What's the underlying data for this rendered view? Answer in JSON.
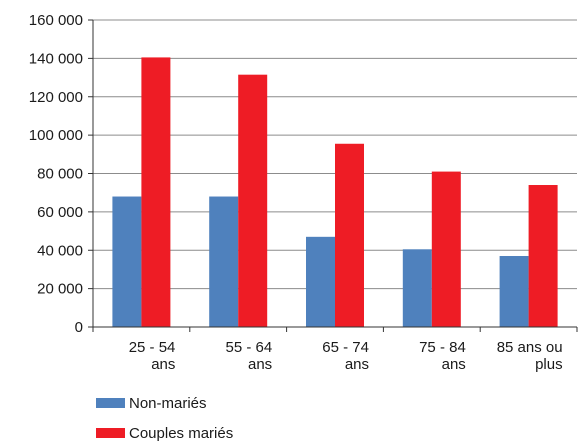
{
  "chart_data": {
    "type": "bar",
    "categories": [
      [
        "25 - 54",
        "ans"
      ],
      [
        "55 - 64",
        "ans"
      ],
      [
        "65 - 74",
        "ans"
      ],
      [
        "75 - 84",
        "ans"
      ],
      [
        "85 ans ou",
        "plus"
      ]
    ],
    "series": [
      {
        "name": "Non-mariés",
        "color": "#4f81bd",
        "values": [
          68000,
          68000,
          47000,
          40500,
          37000
        ]
      },
      {
        "name": "Couples mariés",
        "color": "#ee1c25",
        "values": [
          140500,
          131500,
          95500,
          81000,
          74000
        ]
      }
    ],
    "ylim": [
      0,
      160000
    ],
    "yticks": [
      0,
      20000,
      40000,
      60000,
      80000,
      100000,
      120000,
      140000,
      160000
    ],
    "ytick_labels": [
      "0",
      "20 000",
      "40 000",
      "60 000",
      "80 000",
      "100 000",
      "120 000",
      "140 000",
      "160 000"
    ],
    "grid": true,
    "legend_position": "bottom-left",
    "title": "",
    "xlabel": "",
    "ylabel": ""
  }
}
